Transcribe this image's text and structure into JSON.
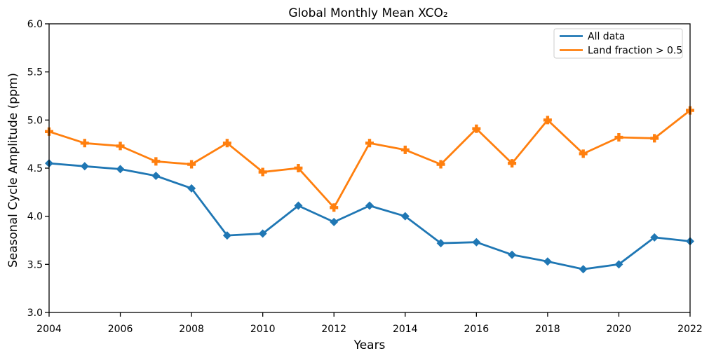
{
  "chart_data": {
    "type": "line",
    "title": "Global Monthly Mean XCO₂",
    "xlabel": "Years",
    "ylabel": "Seasonal Cycle Amplitude (ppm)",
    "xlim": [
      2004,
      2022
    ],
    "ylim": [
      3.0,
      6.0
    ],
    "grid": false,
    "legend_position": "upper right",
    "xticks": [
      {
        "value": 2004,
        "label": "2004"
      },
      {
        "value": 2006,
        "label": "2006"
      },
      {
        "value": 2008,
        "label": "2008"
      },
      {
        "value": 2010,
        "label": "2010"
      },
      {
        "value": 2012,
        "label": "2012"
      },
      {
        "value": 2014,
        "label": "2014"
      },
      {
        "value": 2016,
        "label": "2016"
      },
      {
        "value": 2018,
        "label": "2018"
      },
      {
        "value": 2020,
        "label": "2020"
      },
      {
        "value": 2022,
        "label": "2022"
      }
    ],
    "yticks": [
      {
        "value": 3.0,
        "label": "3.0"
      },
      {
        "value": 3.5,
        "label": "3.5"
      },
      {
        "value": 4.0,
        "label": "4.0"
      },
      {
        "value": 4.5,
        "label": "4.5"
      },
      {
        "value": 5.0,
        "label": "5.0"
      },
      {
        "value": 5.5,
        "label": "5.5"
      },
      {
        "value": 6.0,
        "label": "6.0"
      }
    ],
    "x": [
      2004,
      2005,
      2006,
      2007,
      2008,
      2009,
      2010,
      2011,
      2012,
      2013,
      2014,
      2015,
      2016,
      2017,
      2018,
      2019,
      2020,
      2021,
      2022
    ],
    "series": [
      {
        "name": "All data",
        "color": "#1f77b4",
        "marker": "diamond",
        "values": [
          4.55,
          4.52,
          4.49,
          4.42,
          4.29,
          3.8,
          3.82,
          4.11,
          3.94,
          4.11,
          4.0,
          3.72,
          3.73,
          3.6,
          3.53,
          3.45,
          3.5,
          3.78,
          3.74
        ]
      },
      {
        "name": "Land fraction > 0.5",
        "color": "#ff7f0e",
        "marker": "plus",
        "values": [
          4.88,
          4.76,
          4.73,
          4.57,
          4.54,
          4.76,
          4.46,
          4.5,
          4.09,
          4.76,
          4.69,
          4.54,
          4.91,
          4.55,
          5.0,
          4.65,
          4.82,
          4.81,
          5.1
        ]
      }
    ]
  }
}
